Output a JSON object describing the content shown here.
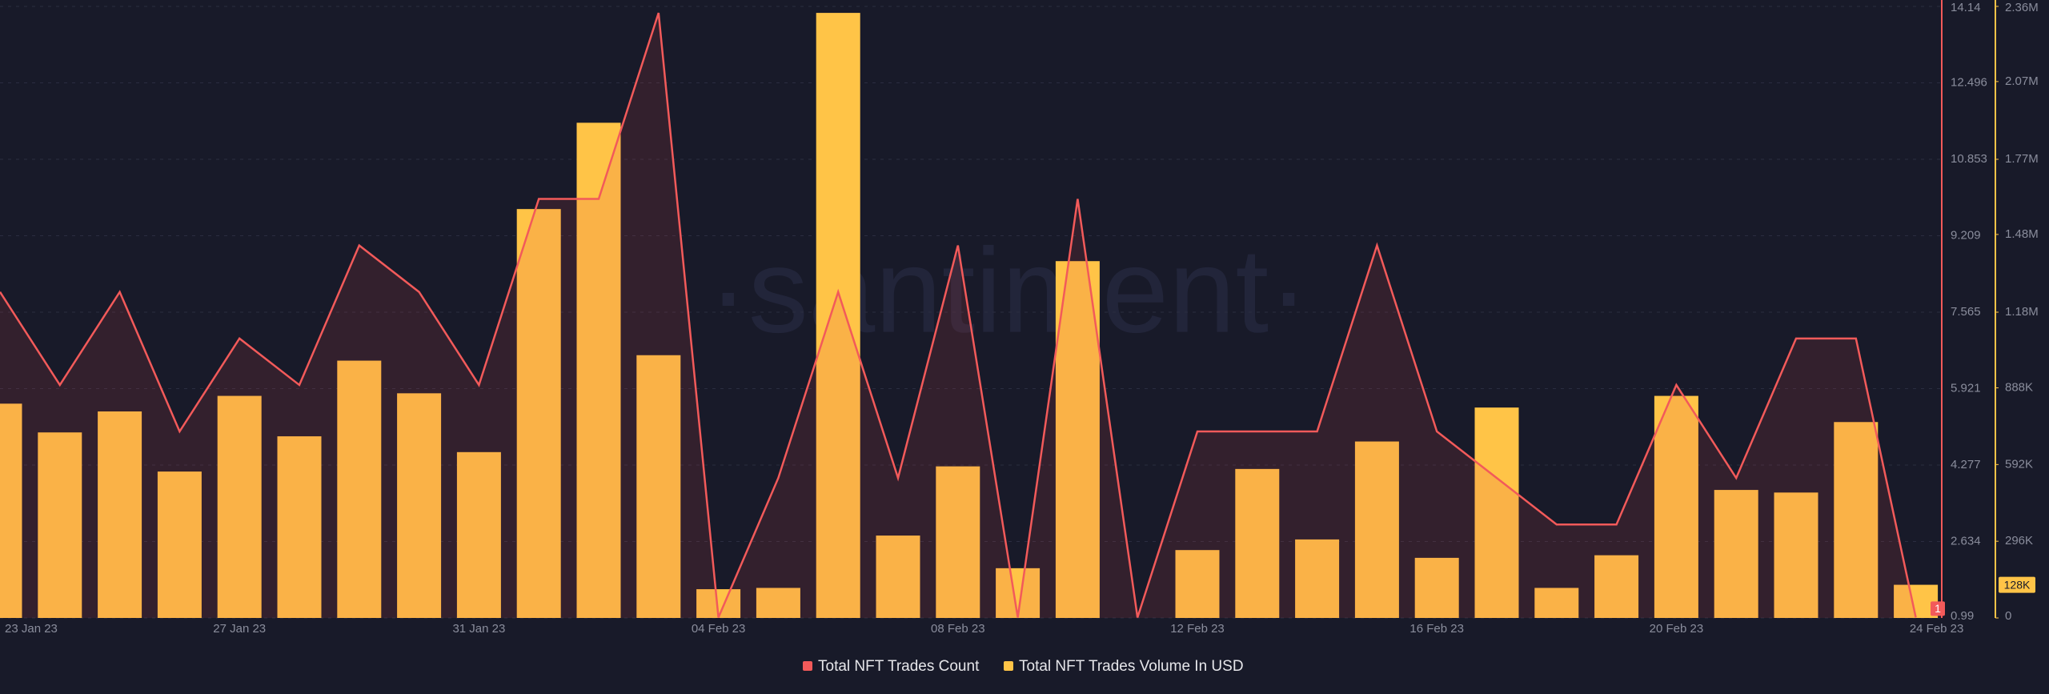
{
  "chart_data": {
    "type": "combo",
    "watermark": "·santiment·",
    "categories": [
      "23 Jan 23",
      null,
      null,
      null,
      "27 Jan 23",
      null,
      null,
      null,
      "31 Jan 23",
      null,
      null,
      null,
      "04 Feb 23",
      null,
      null,
      null,
      "08 Feb 23",
      null,
      null,
      null,
      "12 Feb 23",
      null,
      null,
      null,
      "16 Feb 23",
      null,
      null,
      null,
      "20 Feb 23",
      null,
      null,
      null,
      "24 Feb 23"
    ],
    "series": [
      {
        "name": "Total NFT Trades Count",
        "type": "line",
        "axis": "y",
        "color": "#f25a5a",
        "values": [
          8,
          6,
          8,
          5,
          7,
          6,
          9,
          8,
          6,
          10,
          10,
          14,
          1,
          4,
          8,
          4,
          9,
          1,
          10,
          1,
          5,
          5,
          5,
          9,
          5,
          4,
          3,
          3,
          6,
          4,
          7,
          7,
          1
        ]
      },
      {
        "name": "Total NFT Trades Volume In USD",
        "type": "bar",
        "axis": "y2",
        "color": "#ffc447",
        "values": [
          827000,
          716000,
          797000,
          565000,
          857000,
          701000,
          993000,
          867000,
          640000,
          1578000,
          1911000,
          1014000,
          111000,
          116000,
          2335000,
          318000,
          585000,
          192000,
          1377000,
          0,
          262000,
          575000,
          303000,
          681000,
          232000,
          812000,
          116000,
          242000,
          857000,
          494000,
          484000,
          756000,
          128000
        ],
        "value_labels": [
          null,
          null,
          null,
          null,
          null,
          null,
          null,
          null,
          null,
          null,
          null,
          null,
          null,
          null,
          null,
          null,
          null,
          null,
          null,
          null,
          null,
          null,
          null,
          null,
          null,
          null,
          null,
          null,
          null,
          null,
          null,
          null,
          "128K"
        ]
      }
    ],
    "ylim": [
      0.99,
      14.14
    ],
    "yticks": [
      0.99,
      2.634,
      4.277,
      5.921,
      7.565,
      9.209,
      10.853,
      12.496,
      14.14
    ],
    "y2lim": [
      0,
      2360000
    ],
    "y2ticks": [
      0,
      {
        "value": 296000,
        "label": "296K"
      },
      {
        "value": 592000,
        "label": "592K"
      },
      {
        "value": 888000,
        "label": "888K"
      },
      {
        "value": 1180000,
        "label": "1.18M"
      },
      {
        "value": 1480000,
        "label": "1.48M"
      },
      {
        "value": 1770000,
        "label": "1.77M"
      },
      {
        "value": 2070000,
        "label": "2.07M"
      },
      {
        "value": 2360000,
        "label": "2.36M"
      }
    ],
    "grid": true
  }
}
